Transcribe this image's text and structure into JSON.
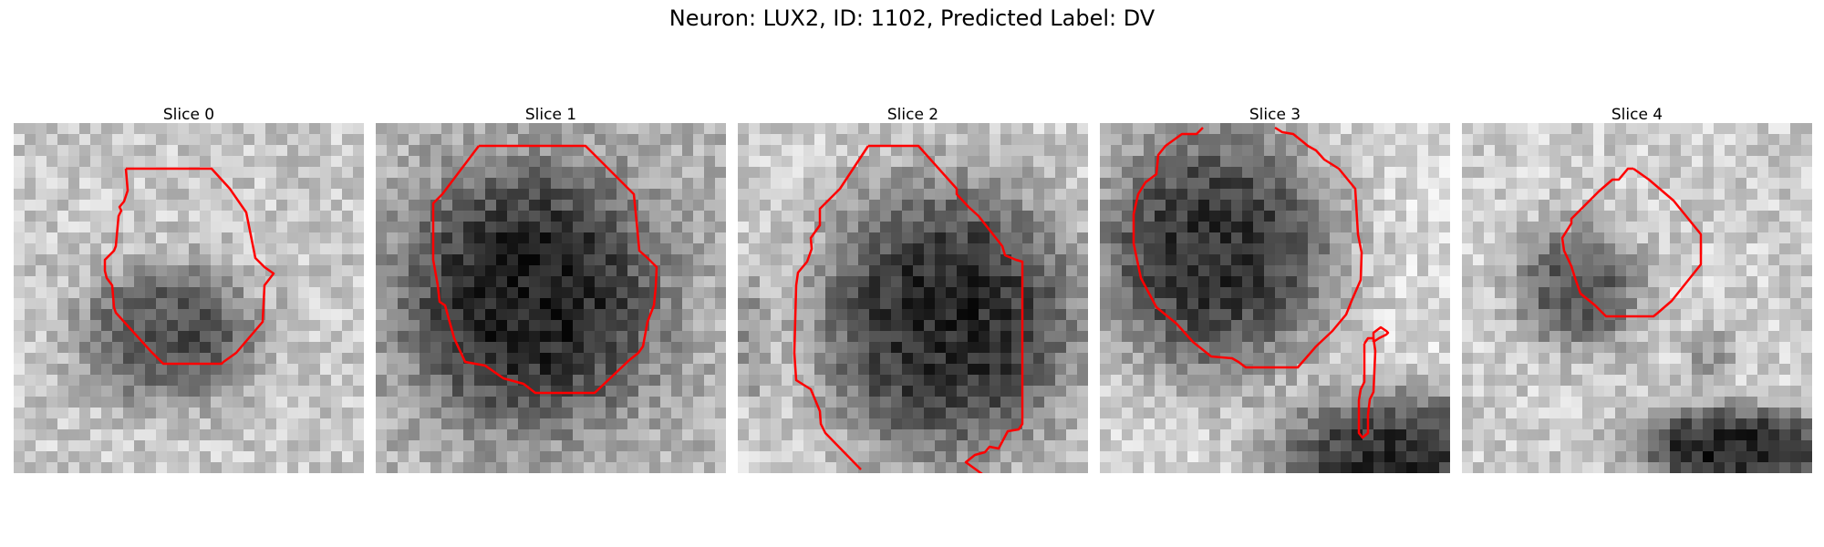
{
  "figure": {
    "title": "Neuron: LUX2, ID: 1102, Predicted Label: DV"
  },
  "panels": [
    {
      "title": "Slice 0"
    },
    {
      "title": "Slice 1"
    },
    {
      "title": "Slice 2"
    },
    {
      "title": "Slice 3"
    },
    {
      "title": "Slice 4"
    }
  ],
  "style": {
    "contour_color": "#ff0000",
    "colormap": "grayscale"
  }
}
